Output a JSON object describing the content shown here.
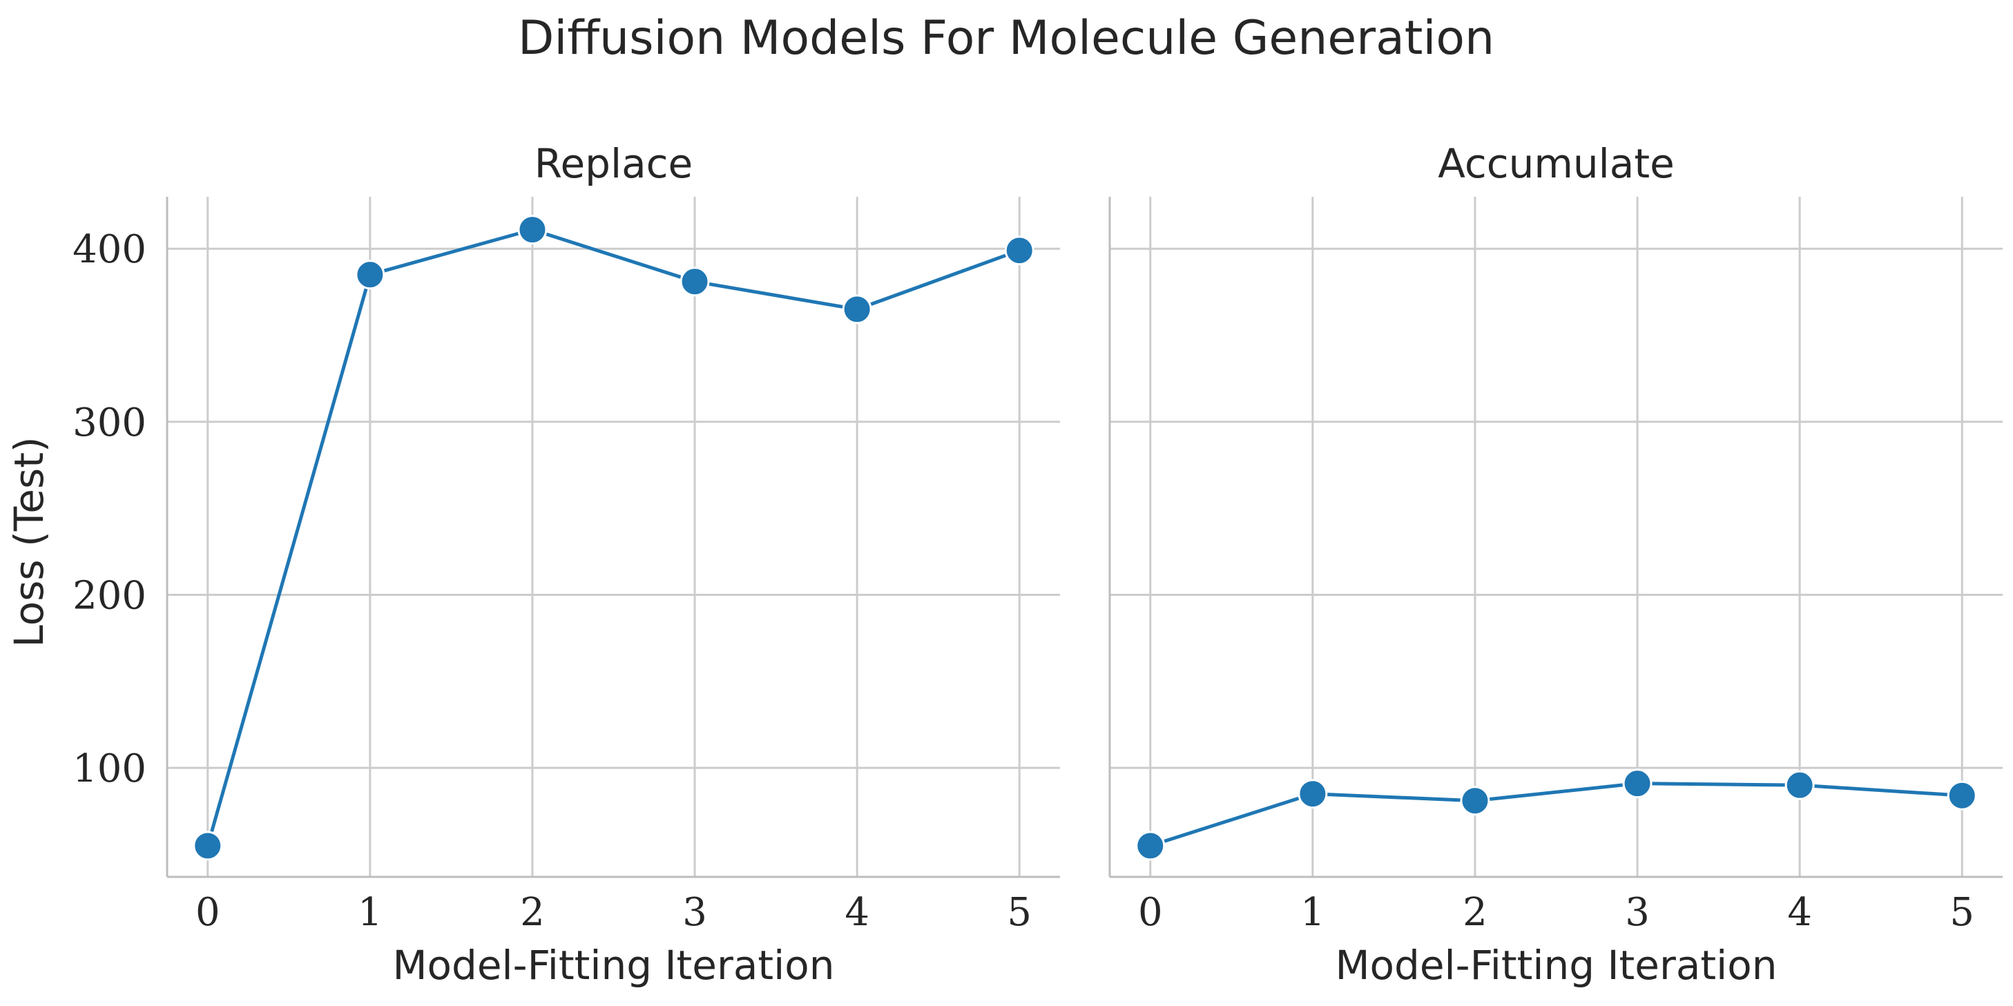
{
  "title": "Diffusion Models For Molecule Generation",
  "ylabel": "Loss (Test)",
  "colors": {
    "line": "#1f77b4",
    "grid": "#cccccc",
    "axis": "#bdbdbd",
    "text": "#262626",
    "marker_edge": "#ffffff"
  },
  "chart_data": [
    {
      "type": "line",
      "title": "Replace",
      "xlabel": "Model-Fitting Iteration",
      "x": [
        0,
        1,
        2,
        3,
        4,
        5
      ],
      "y": [
        55,
        385,
        411,
        381,
        365,
        399
      ],
      "xticks": [
        "0",
        "1",
        "2",
        "3",
        "4",
        "5"
      ],
      "yticks": [
        100,
        200,
        300,
        400
      ],
      "xlim": [
        -0.25,
        5.25
      ],
      "ylim": [
        37,
        430
      ],
      "grid": true
    },
    {
      "type": "line",
      "title": "Accumulate",
      "xlabel": "Model-Fitting Iteration",
      "x": [
        0,
        1,
        2,
        3,
        4,
        5
      ],
      "y": [
        55,
        85,
        81,
        91,
        90,
        84
      ],
      "xticks": [
        "0",
        "1",
        "2",
        "3",
        "4",
        "5"
      ],
      "yticks": [
        100,
        200,
        300,
        400
      ],
      "xlim": [
        -0.25,
        5.25
      ],
      "ylim": [
        37,
        430
      ],
      "grid": true
    }
  ]
}
